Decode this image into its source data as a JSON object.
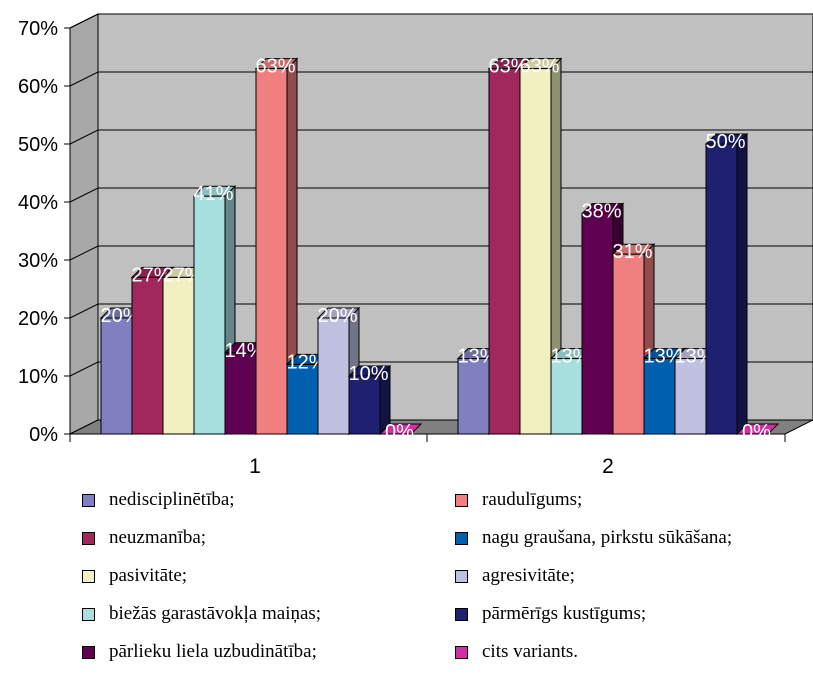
{
  "chart_data": {
    "type": "bar",
    "style": "3d-clustered-column",
    "categories": [
      "1",
      "2"
    ],
    "ylim": [
      0,
      70
    ],
    "yticks": [
      "0%",
      "10%",
      "20%",
      "30%",
      "40%",
      "50%",
      "60%",
      "70%"
    ],
    "grid": true,
    "legend_position": "bottom",
    "series": [
      {
        "name": "nedisciplinētība;",
        "color": "#8080c0",
        "values": [
          20,
          13
        ],
        "labels": [
          "20%",
          "13%"
        ]
      },
      {
        "name": "neuzmanība;",
        "color": "#a0285c",
        "values": [
          27,
          63
        ],
        "labels": [
          "27%",
          "63%"
        ]
      },
      {
        "name": "pasivitāte;",
        "color": "#f0f0c0",
        "values": [
          27,
          63
        ],
        "labels": [
          "27%",
          "63%"
        ]
      },
      {
        "name": "biežās garastāvokļa maiņas;",
        "color": "#a8e0e0",
        "values": [
          41,
          13
        ],
        "labels": [
          "41%",
          "13%"
        ]
      },
      {
        "name": "pārlieku liela uzbudinātība;",
        "color": "#600050",
        "values": [
          14,
          38
        ],
        "labels": [
          "14%",
          "38%"
        ]
      },
      {
        "name": "raudulīgums;",
        "color": "#f08080",
        "values": [
          63,
          31
        ],
        "labels": [
          "63%",
          "31%"
        ]
      },
      {
        "name": "nagu graušana, pirkstu sūkāšana;",
        "color": "#0060b0",
        "values": [
          12,
          13
        ],
        "labels": [
          "12%",
          "13%"
        ]
      },
      {
        "name": "agresivitāte;",
        "color": "#c0c0e0",
        "values": [
          20,
          13
        ],
        "labels": [
          "20%",
          "13%"
        ]
      },
      {
        "name": "pārmērīgs kustīgums;",
        "color": "#202070",
        "values": [
          10,
          50
        ],
        "labels": [
          "10%",
          "50%"
        ]
      },
      {
        "name": "cits variants.",
        "color": "#d030a0",
        "values": [
          0,
          0
        ],
        "labels": [
          "0%",
          "0%"
        ]
      }
    ]
  }
}
